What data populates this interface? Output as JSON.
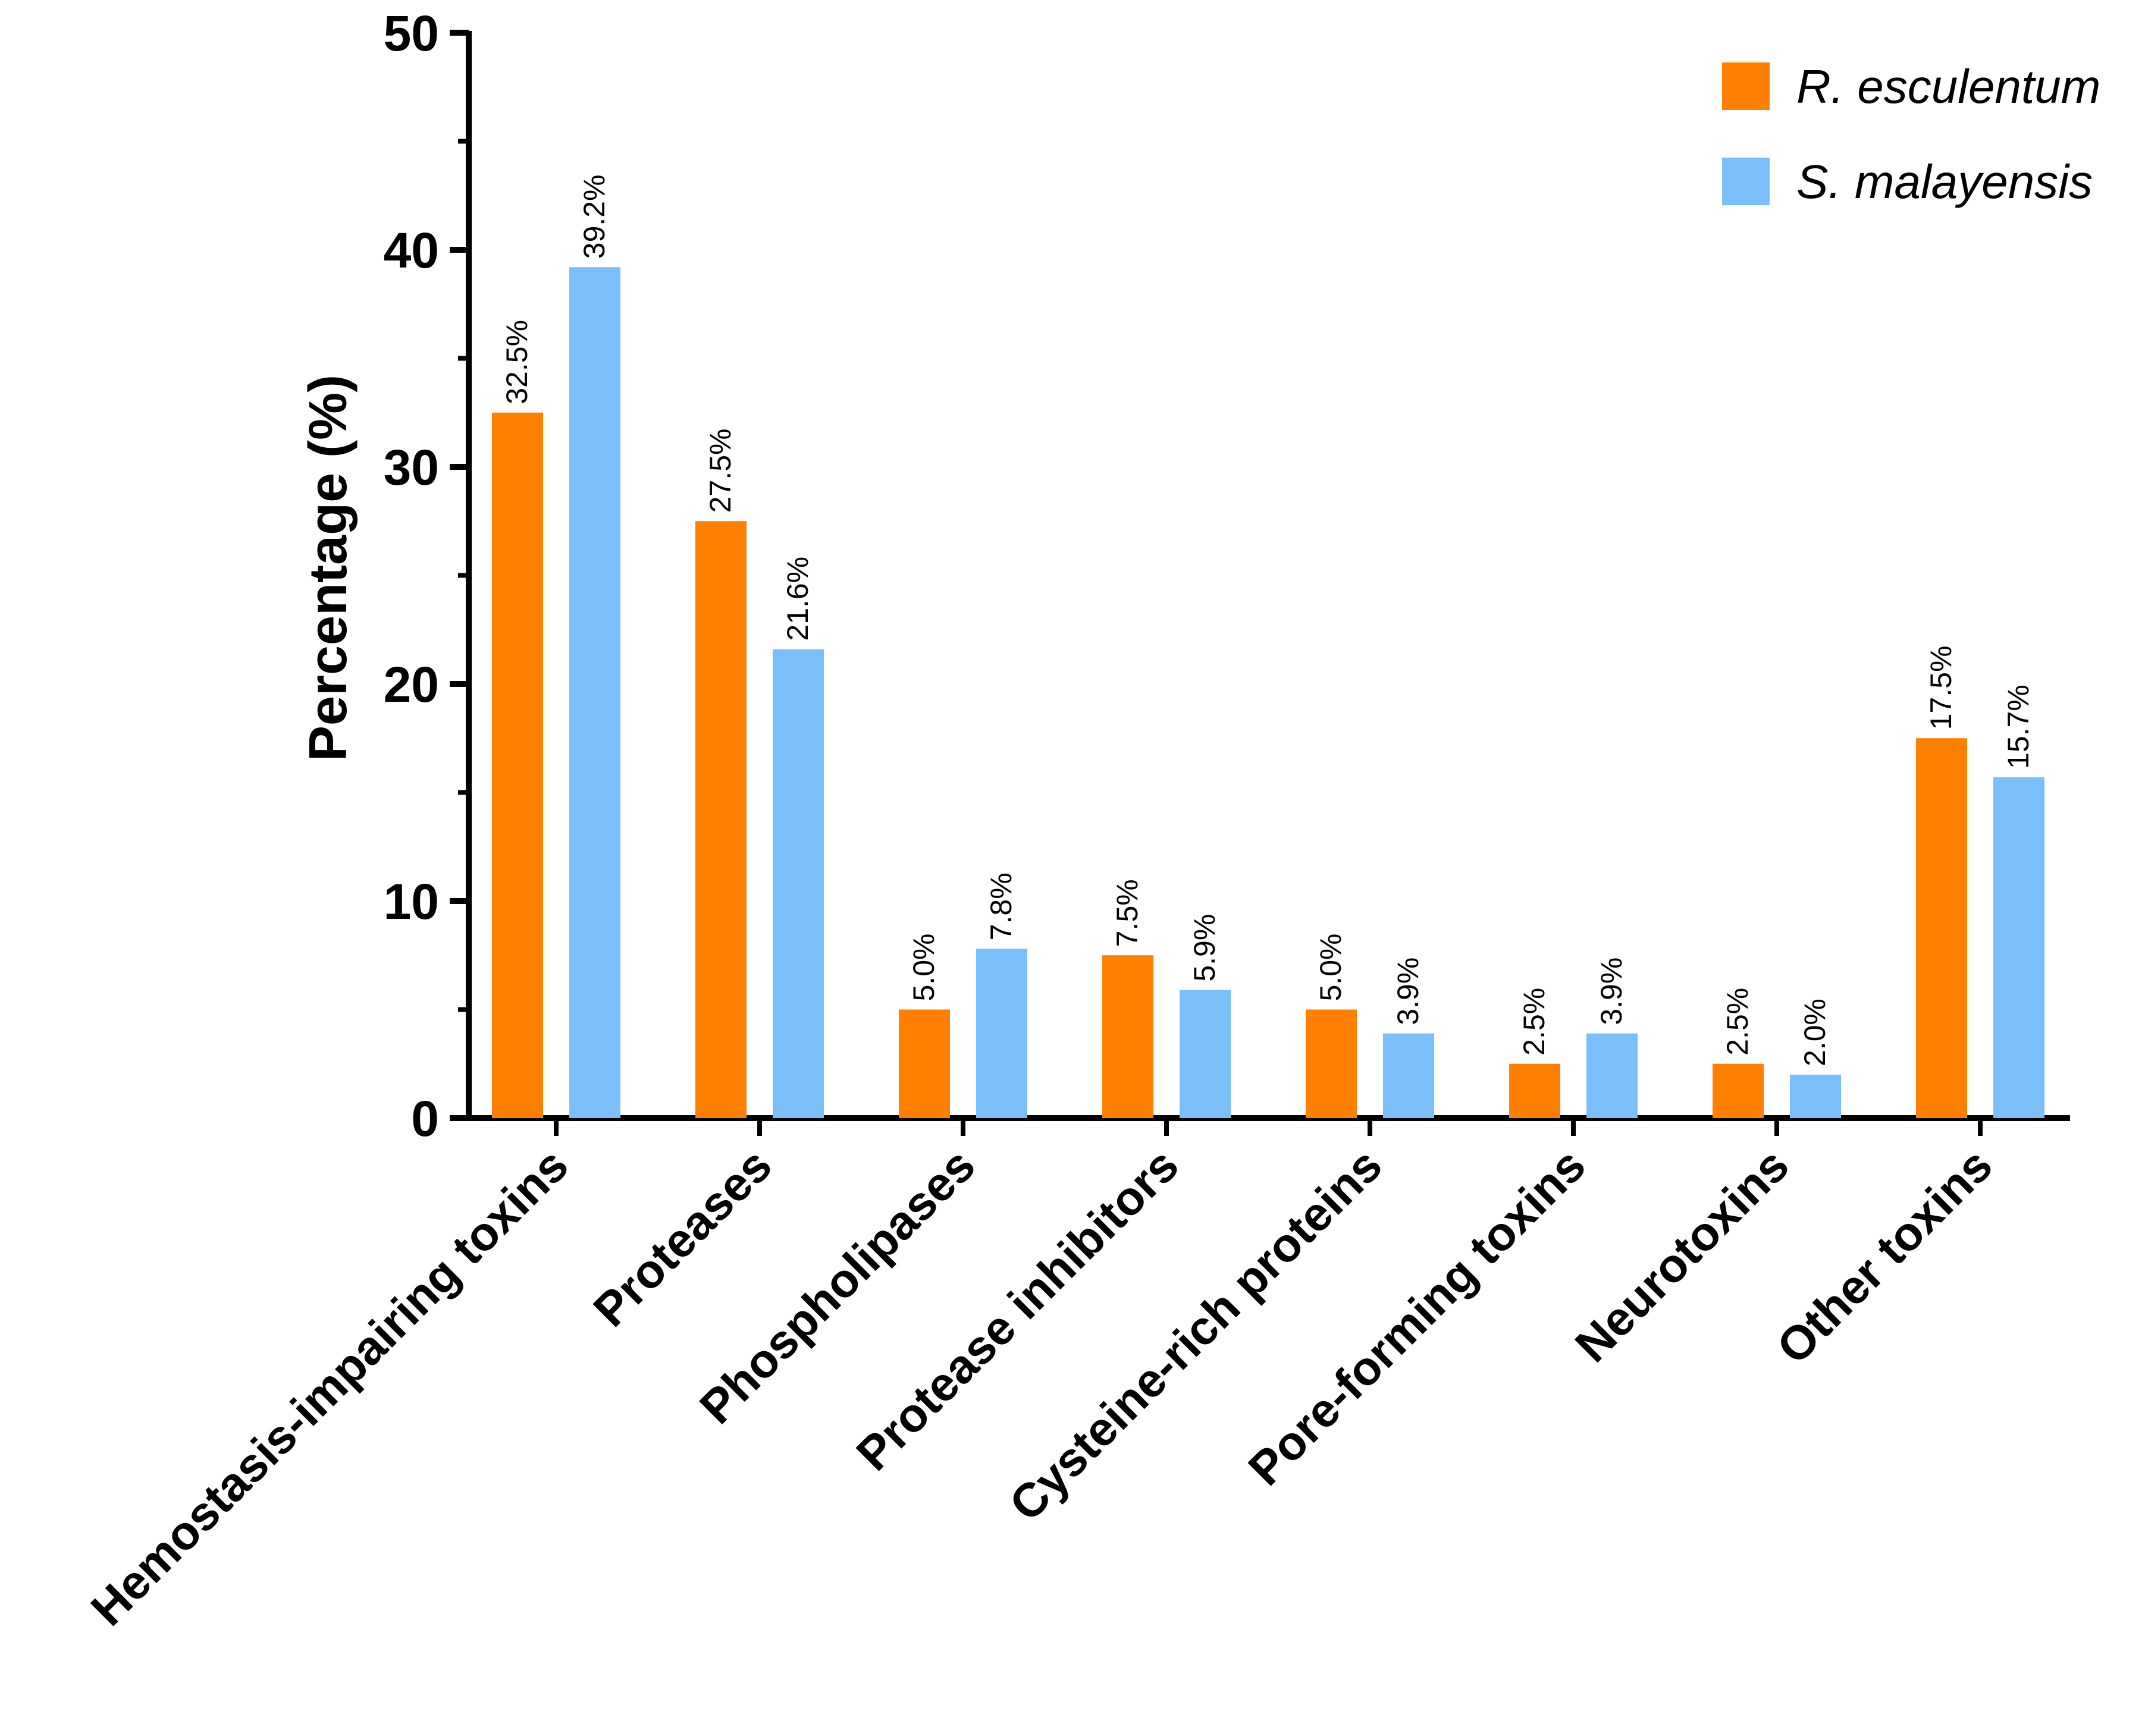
{
  "chart_data": {
    "type": "bar",
    "categories": [
      "Hemostasis-impairing toxins",
      "Proteases",
      "Phospholipases",
      "Protease inhibitors",
      "Cysteine-rich proteins",
      "Pore-forming toxins",
      "Neurotoxins",
      "Other toxins"
    ],
    "series": [
      {
        "name": "R. esculentum",
        "color": "#FF7F00",
        "values": [
          32.5,
          27.5,
          5.0,
          7.5,
          5.0,
          2.5,
          2.5,
          17.5
        ],
        "labels": [
          "32.5%",
          "27.5%",
          "5.0%",
          "7.5%",
          "5.0%",
          "2.5%",
          "2.5%",
          "17.5%"
        ]
      },
      {
        "name": "S. malayensis",
        "color": "#7ABFFA",
        "values": [
          39.2,
          21.6,
          7.8,
          5.9,
          3.9,
          3.9,
          2.0,
          15.7
        ],
        "labels": [
          "39.2%",
          "21.6%",
          "7.8%",
          "5.9%",
          "3.9%",
          "3.9%",
          "2.0%",
          "15.7%"
        ]
      }
    ],
    "title": "",
    "xlabel": "",
    "ylabel": "Percentage (%)",
    "ylim": [
      0,
      50
    ],
    "yticks": [
      0,
      10,
      20,
      30,
      40,
      50
    ],
    "ytick_labels": [
      "0",
      "10",
      "20",
      "30",
      "40",
      "50"
    ],
    "grid": false,
    "legend_position": "top-right"
  }
}
